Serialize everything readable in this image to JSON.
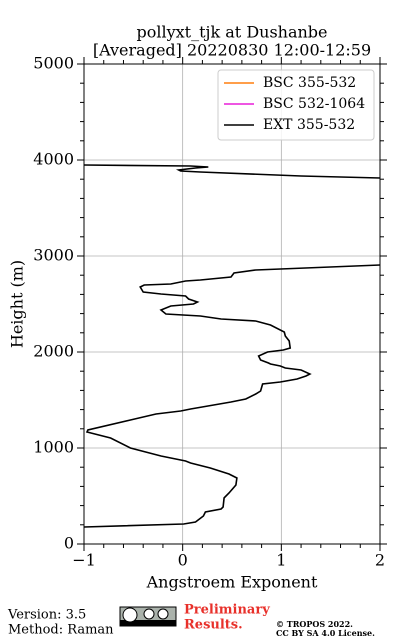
{
  "chart_data": {
    "type": "line",
    "title": "pollyxt_tjk at Dushanbe",
    "subtitle": "[Averaged] 20220830 12:00-12:59",
    "x_label": "Angstroem Exponent",
    "y_label": "Height (m)",
    "xlim": [
      -1,
      2
    ],
    "ylim": [
      0,
      5000
    ],
    "xticks": [
      {
        "value": -1,
        "label": "−1"
      },
      0,
      1,
      2
    ],
    "yticks": [
      0,
      1000,
      2000,
      3000,
      4000,
      5000
    ],
    "xminor": [
      -0.8,
      -0.6,
      -0.4,
      -0.2,
      0.2,
      0.4,
      0.6,
      0.8,
      1.2,
      1.4,
      1.6,
      1.8
    ],
    "yminor": [
      200,
      400,
      600,
      800,
      1200,
      1400,
      1600,
      1800,
      2200,
      2400,
      2600,
      2800,
      3200,
      3400,
      3600,
      3800,
      4200,
      4400,
      4600,
      4800
    ],
    "grid": true,
    "legend": "upper right",
    "series": [
      {
        "name": "BSC 355-532",
        "color": "#ff7f0e",
        "x": [],
        "y": []
      },
      {
        "name": "BSC 532-1064",
        "color": "#e81ed8",
        "x": [],
        "y": []
      },
      {
        "name": "EXT 355-532",
        "color": "#000000",
        "x": [
          -1,
          0.01,
          0.13,
          0.21,
          0.23,
          0.39,
          0.41,
          0.42,
          0.47,
          0.54,
          0.55,
          0.47,
          0.28,
          0.08,
          0.03,
          -0.22,
          -0.53,
          -0.73,
          -0.97,
          -0.96,
          -0.53,
          -0.27,
          -0.02,
          0.08,
          0.49,
          0.64,
          0.74,
          0.79,
          0.81,
          0.99,
          1.16,
          1.25,
          1.29,
          1.2,
          1.04,
          0.99,
          0.89,
          0.87,
          0.79,
          0.77,
          0.86,
          1.02,
          1.09,
          1.08,
          1.04,
          1.03,
          0.89,
          0.74,
          0.39,
          0.18,
          -0.17,
          -0.22,
          -0.12,
          0.11,
          0.15,
          0.06,
          0.03,
          -0.22,
          -0.4,
          -0.43,
          -0.39,
          -0.12,
          0.03,
          0.18,
          0.49,
          0.52,
          0.74,
          2.0,
          null,
          2.0,
          1.2,
          0.18,
          -0.02,
          -0.04,
          0.13,
          0.26,
          0.08,
          -1
        ],
        "y": [
          177,
          208,
          229,
          292,
          333,
          365,
          385,
          480,
          531,
          615,
          688,
          729,
          792,
          844,
          865,
          917,
          1000,
          1104,
          1167,
          1188,
          1292,
          1354,
          1385,
          1406,
          1479,
          1510,
          1563,
          1594,
          1667,
          1688,
          1719,
          1750,
          1771,
          1813,
          1833,
          1854,
          1875,
          1885,
          1917,
          1958,
          2000,
          2021,
          2042,
          2115,
          2167,
          2208,
          2281,
          2323,
          2344,
          2375,
          2396,
          2438,
          2479,
          2500,
          2521,
          2552,
          2583,
          2604,
          2625,
          2677,
          2698,
          2708,
          2740,
          2750,
          2781,
          2823,
          2854,
          2906,
          null,
          3813,
          3833,
          3875,
          3885,
          3896,
          3917,
          3927,
          3938,
          3948
        ]
      }
    ]
  },
  "footer": {
    "version": "Version: 3.5",
    "method": "Method: Raman",
    "status": [
      "Preliminary",
      "Results."
    ],
    "copyright": [
      "© TROPOS 2022.",
      "CC BY SA 4.0 License."
    ]
  }
}
